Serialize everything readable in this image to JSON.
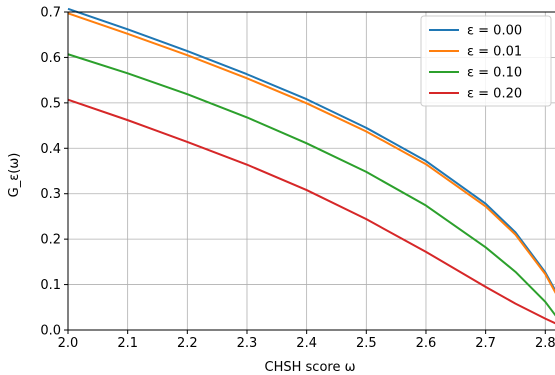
{
  "chart_data": {
    "type": "line",
    "xlabel": "CHSH score ω",
    "ylabel": "G_ε(ω)",
    "xlim": [
      2.0,
      2.828
    ],
    "ylim": [
      0.0,
      0.7
    ],
    "xticks": [
      2.0,
      2.1,
      2.2,
      2.3,
      2.4,
      2.5,
      2.6,
      2.7,
      2.8
    ],
    "xtick_labels": [
      "2.0",
      "2.1",
      "2.2",
      "2.3",
      "2.4",
      "2.5",
      "2.6",
      "2.7",
      "2.8"
    ],
    "yticks": [
      0.0,
      0.1,
      0.2,
      0.3,
      0.4,
      0.5,
      0.6,
      0.7
    ],
    "ytick_labels": [
      "0.0",
      "0.1",
      "0.2",
      "0.3",
      "0.4",
      "0.5",
      "0.6",
      "0.7"
    ],
    "grid": true,
    "legend_position": "top-right",
    "x": [
      2.0,
      2.1,
      2.2,
      2.3,
      2.4,
      2.5,
      2.6,
      2.7,
      2.75,
      2.8,
      2.828
    ],
    "series": [
      {
        "name": "ε = 0.00",
        "color": "#1f77b4",
        "values": [
          0.707,
          0.662,
          0.614,
          0.563,
          0.508,
          0.445,
          0.372,
          0.278,
          0.215,
          0.127,
          0.06
        ]
      },
      {
        "name": "ε = 0.01",
        "color": "#ff7f0e",
        "values": [
          0.697,
          0.652,
          0.605,
          0.554,
          0.499,
          0.437,
          0.365,
          0.272,
          0.21,
          0.123,
          0.056
        ]
      },
      {
        "name": "ε = 0.10",
        "color": "#2ca02c",
        "values": [
          0.607,
          0.565,
          0.519,
          0.468,
          0.411,
          0.348,
          0.274,
          0.182,
          0.128,
          0.062,
          0.013
        ]
      },
      {
        "name": "ε = 0.20",
        "color": "#d62728",
        "values": [
          0.507,
          0.462,
          0.414,
          0.364,
          0.308,
          0.244,
          0.172,
          0.095,
          0.058,
          0.025,
          0.008
        ]
      }
    ]
  }
}
